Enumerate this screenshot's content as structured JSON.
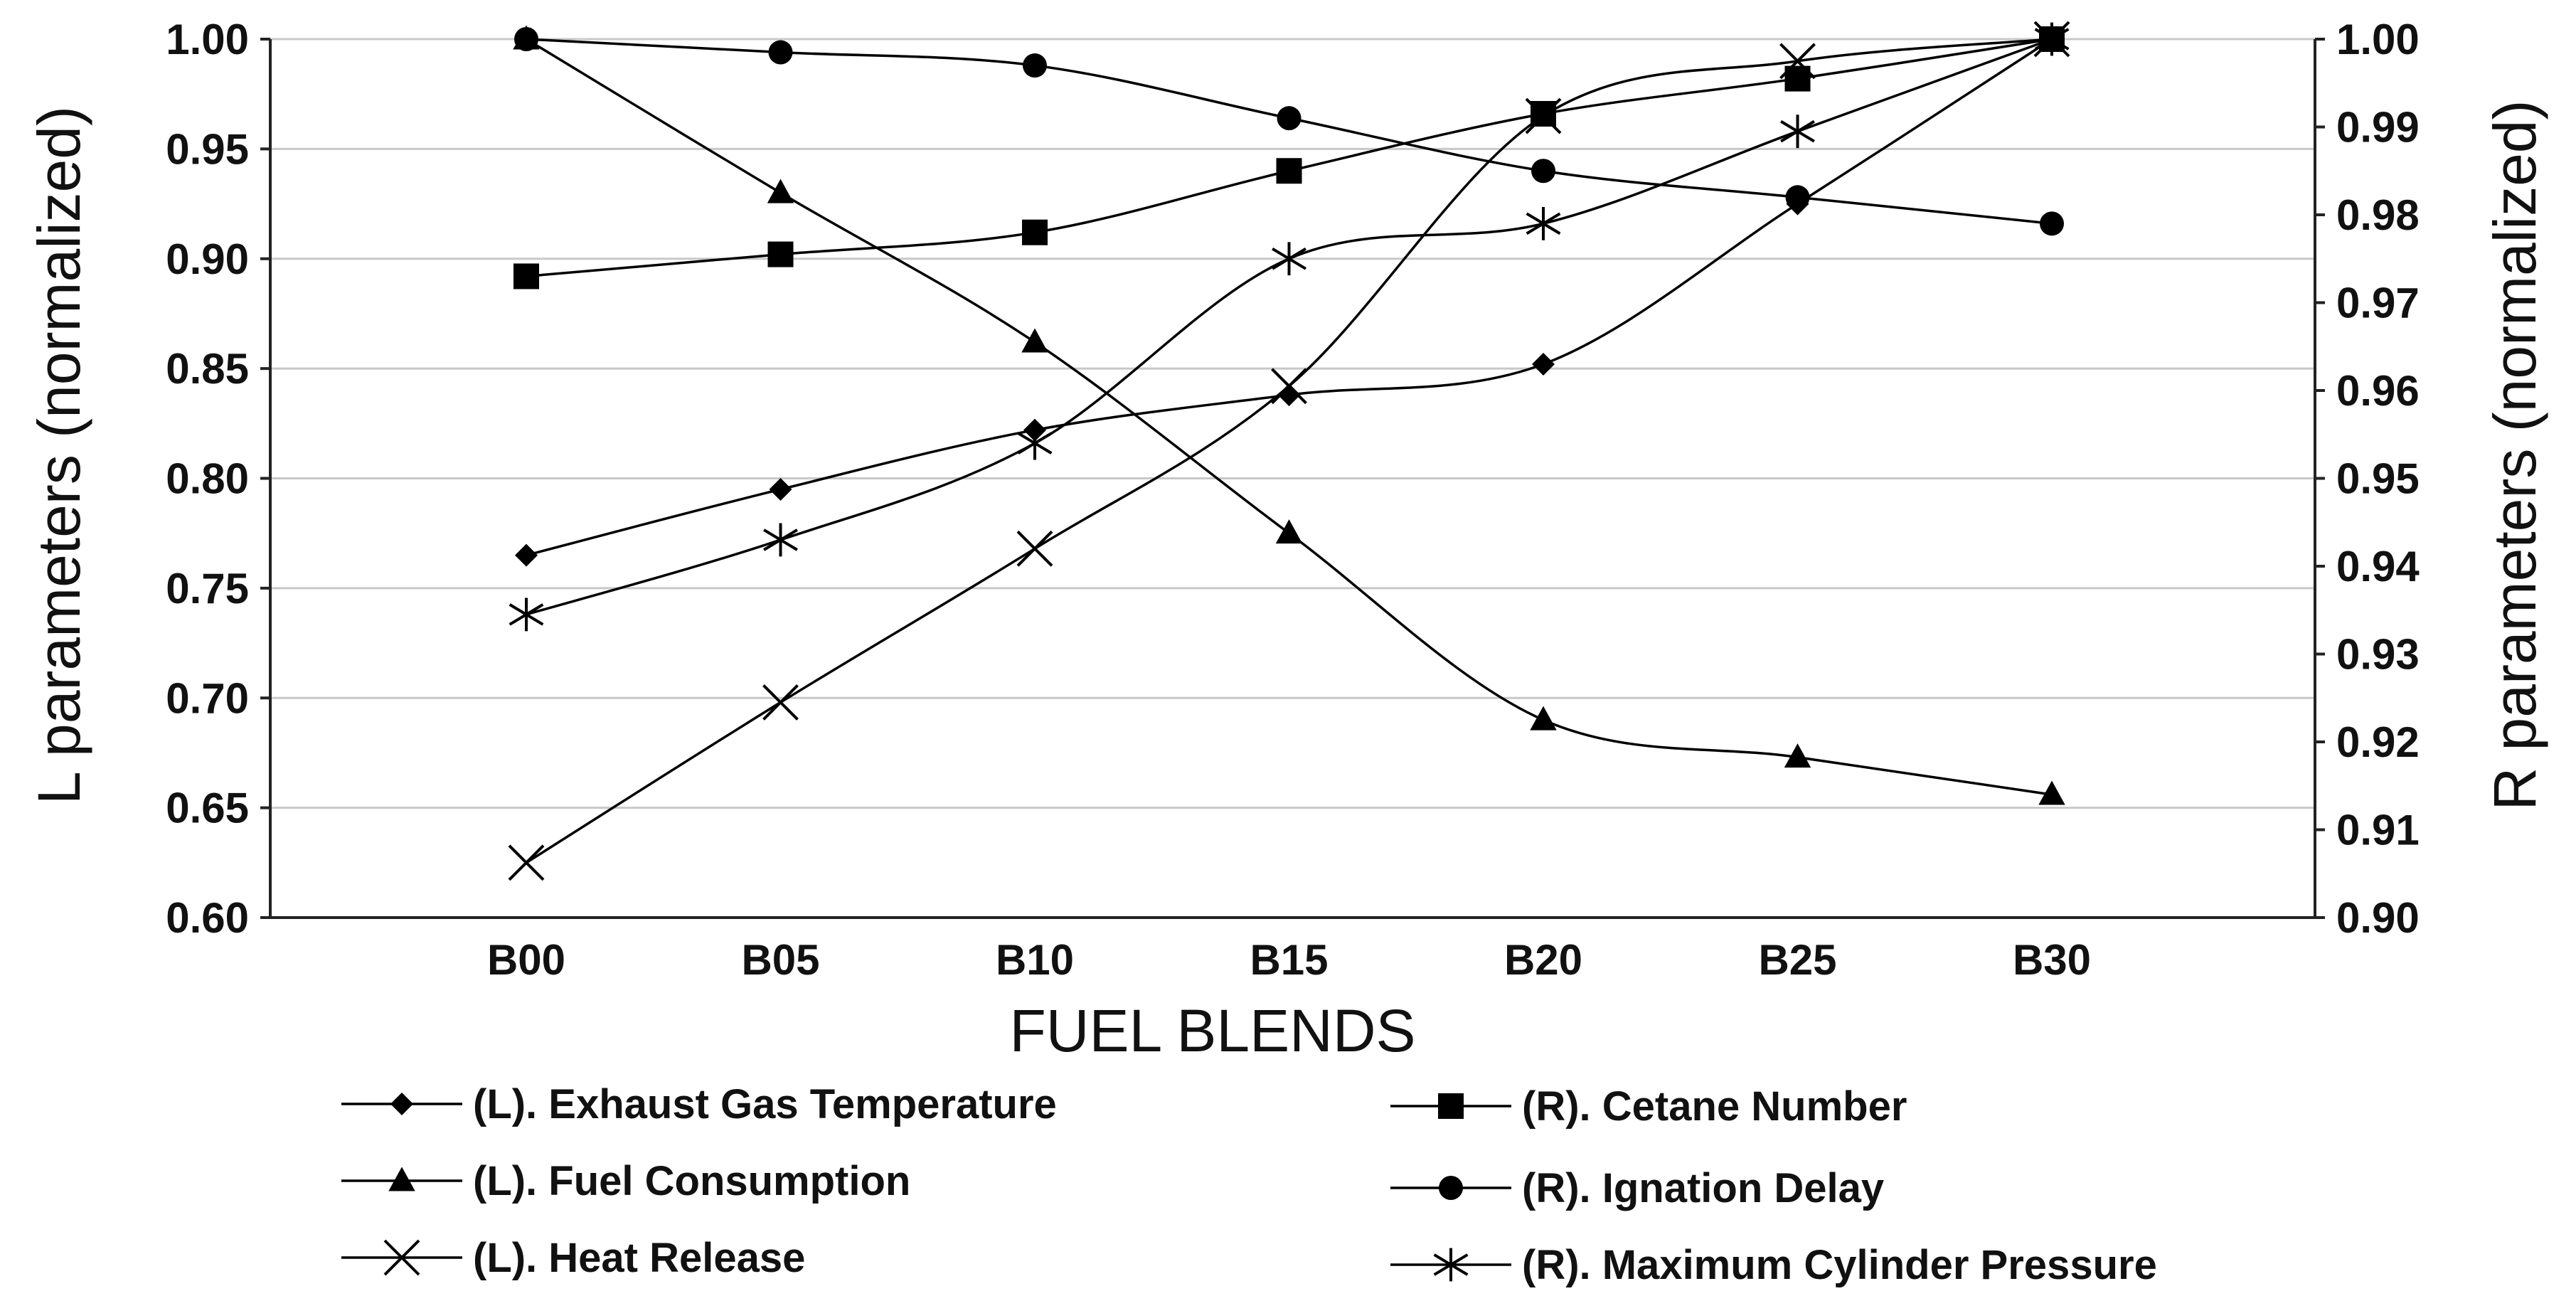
{
  "chart_data": {
    "type": "line",
    "title": "",
    "xlabel": "FUEL BLENDS",
    "ylabel_left": "L parameters (normalized)",
    "ylabel_right": "R parameters (normalized)",
    "categories": [
      "B00",
      "B05",
      "B10",
      "B15",
      "B20",
      "B25",
      "B30"
    ],
    "ylim_left": [
      0.6,
      1.0
    ],
    "ylim_right": [
      0.9,
      1.0
    ],
    "yticks_left": [
      "0.60",
      "0.65",
      "0.70",
      "0.75",
      "0.80",
      "0.85",
      "0.90",
      "0.95",
      "1.00"
    ],
    "yticks_right": [
      "0.90",
      "0.91",
      "0.92",
      "0.93",
      "0.94",
      "0.95",
      "0.96",
      "0.97",
      "0.98",
      "0.99",
      "1.00"
    ],
    "grid": true,
    "legend_position": "bottom",
    "series": [
      {
        "name": "(L). Exhaust Gas Temperature",
        "axis": "left",
        "marker": "diamond",
        "values": [
          0.765,
          0.795,
          0.822,
          0.838,
          0.852,
          0.925,
          1.0
        ]
      },
      {
        "name": "(L). Fuel Consumption",
        "axis": "left",
        "marker": "triangle",
        "values": [
          1.0,
          0.93,
          0.862,
          0.775,
          0.69,
          0.673,
          0.656
        ]
      },
      {
        "name": "(L). Heat Release",
        "axis": "left",
        "marker": "x",
        "values": [
          0.625,
          0.698,
          0.768,
          0.842,
          0.965,
          0.99,
          1.0
        ]
      },
      {
        "name": "(R). Cetane Number",
        "axis": "right",
        "marker": "square",
        "values": [
          0.973,
          0.9755,
          0.978,
          0.985,
          0.9915,
          0.9955,
          1.0
        ]
      },
      {
        "name": "(R). Ignation Delay",
        "axis": "right",
        "marker": "circle",
        "values": [
          1.0,
          0.9985,
          0.997,
          0.991,
          0.985,
          0.982,
          0.979
        ]
      },
      {
        "name": "(R). Maximum Cylinder Pressure",
        "axis": "right",
        "marker": "asterisk",
        "values": [
          0.9345,
          0.943,
          0.954,
          0.975,
          0.979,
          0.9895,
          1.0
        ]
      }
    ]
  }
}
